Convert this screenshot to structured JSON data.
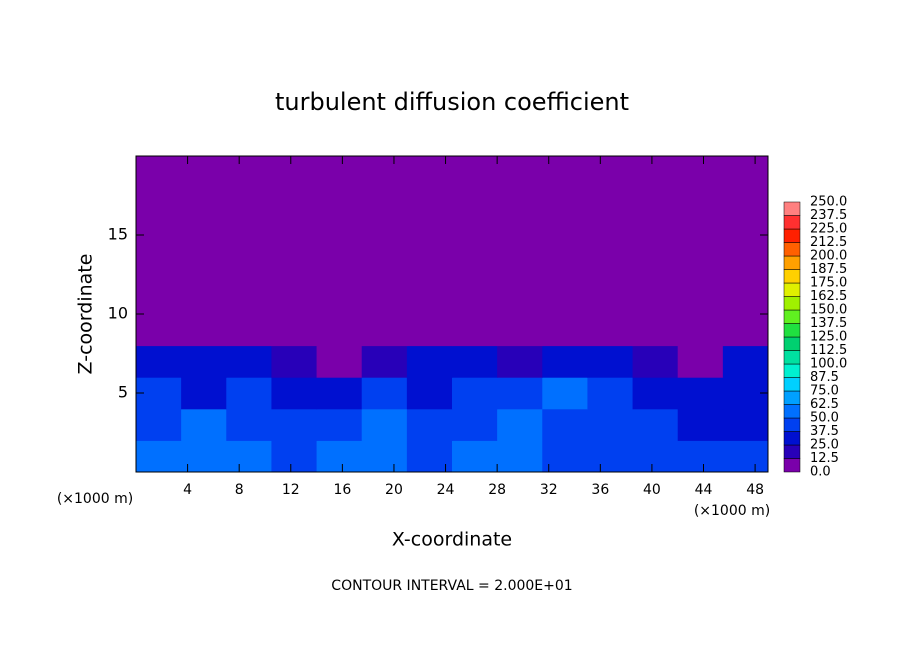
{
  "chart_data": {
    "type": "contour",
    "title": "turbulent diffusion coefficient",
    "x_label": "X-coordinate",
    "y_label": "Z-coordinate",
    "x_unit_left": "(×1000 m)",
    "x_unit_right": "(×1000 m)",
    "footer": "CONTOUR INTERVAL = 2.000E+01",
    "xlim": [
      0,
      49
    ],
    "ylim": [
      0,
      20
    ],
    "xticks": [
      4,
      8,
      12,
      16,
      20,
      24,
      28,
      32,
      36,
      40,
      44,
      48
    ],
    "yticks": [
      5,
      10,
      15
    ],
    "field_x": [
      0,
      3.5,
      7,
      10.5,
      14,
      17.5,
      21,
      24.5,
      28,
      31.5,
      35,
      38.5,
      42,
      45.5,
      49
    ],
    "field_z": [
      0,
      2,
      4,
      6,
      8,
      20
    ],
    "field": [
      [
        55,
        60,
        50,
        45,
        50,
        55,
        45,
        55,
        50,
        45,
        45,
        40,
        45,
        40
      ],
      [
        45,
        50,
        40,
        45,
        40,
        55,
        40,
        45,
        60,
        40,
        45,
        40,
        35,
        35
      ],
      [
        40,
        35,
        40,
        30,
        35,
        45,
        35,
        40,
        45,
        50,
        40,
        30,
        30,
        35
      ],
      [
        30,
        25,
        30,
        20,
        10,
        20,
        30,
        35,
        20,
        30,
        35,
        20,
        10,
        25
      ],
      [
        0,
        0,
        0,
        0,
        0,
        0,
        0,
        0,
        0,
        0,
        0,
        0,
        0,
        0
      ]
    ],
    "colorbar": {
      "ticks": [
        {
          "value": 0,
          "label": "0.0"
        },
        {
          "value": 12.5,
          "label": "12.5"
        },
        {
          "value": 25,
          "label": "25.0"
        },
        {
          "value": 37.5,
          "label": "37.5"
        },
        {
          "value": 50,
          "label": "50.0"
        },
        {
          "value": 62.5,
          "label": "62.5"
        },
        {
          "value": 75,
          "label": "75.0"
        },
        {
          "value": 87.5,
          "label": "87.5"
        },
        {
          "value": 100,
          "label": "100.0"
        },
        {
          "value": 112.5,
          "label": "112.5"
        },
        {
          "value": 125,
          "label": "125.0"
        },
        {
          "value": 137.5,
          "label": "137.5"
        },
        {
          "value": 150,
          "label": "150.0"
        },
        {
          "value": 162.5,
          "label": "162.5"
        },
        {
          "value": 175,
          "label": "175.0"
        },
        {
          "value": 187.5,
          "label": "187.5"
        },
        {
          "value": 200,
          "label": "200.0"
        },
        {
          "value": 212.5,
          "label": "212.5"
        },
        {
          "value": 225,
          "label": "225.0"
        },
        {
          "value": 237.5,
          "label": "237.5"
        },
        {
          "value": 250,
          "label": "250.0"
        }
      ],
      "colors": [
        "#7a00aa",
        "#2800b8",
        "#0010d0",
        "#0040f0",
        "#0070ff",
        "#00a0ff",
        "#00d0ff",
        "#00f0d0",
        "#00e0a0",
        "#00d070",
        "#20e040",
        "#60f020",
        "#a0f000",
        "#e0f000",
        "#ffd000",
        "#ffa000",
        "#ff6000",
        "#ff2000",
        "#ff3030",
        "#ff8080"
      ]
    }
  }
}
